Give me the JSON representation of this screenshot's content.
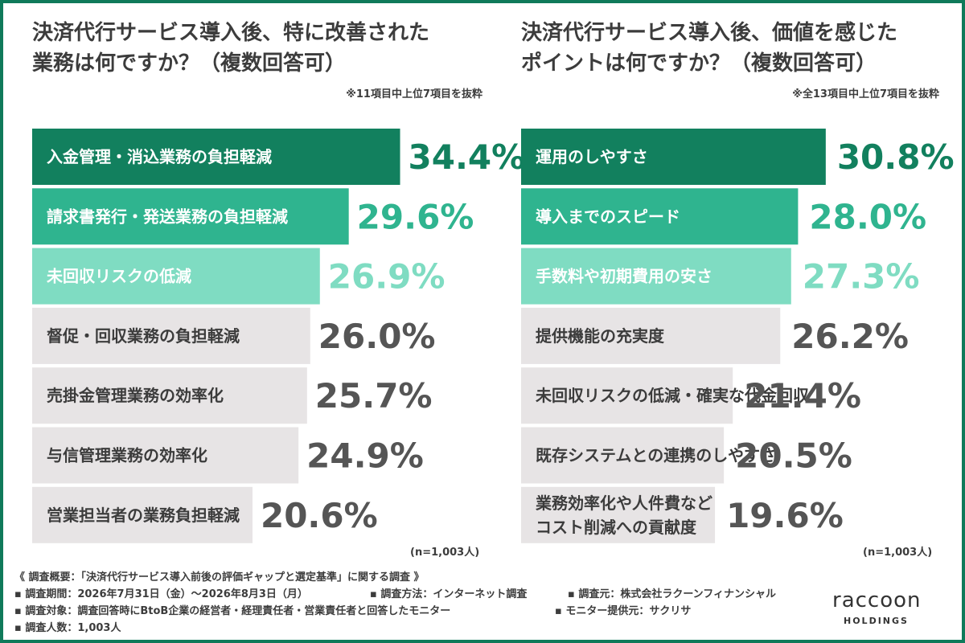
{
  "chart_data": [
    {
      "type": "bar",
      "orientation": "horizontal",
      "title": "決済代行サービス導入後、特に改善された業務は何ですか？（複数回答可）",
      "title_lines": [
        "決済代行サービス導入後、特に改善された",
        "業務は何ですか？（複数回答可）"
      ],
      "note": "※11項目中上位7項目を抜粋",
      "sample": "(n=1,003人)",
      "unit": "%",
      "categories": [
        "入金管理・消込業務の負担軽減",
        "請求書発行・発送業務の負担軽減",
        "未回収リスクの低減",
        "督促・回収業務の負担軽減",
        "売掛金管理業務の効率化",
        "与信管理業務の効率化",
        "営業担当者の業務負担軽減"
      ],
      "values": [
        34.4,
        29.6,
        26.9,
        26.0,
        25.7,
        24.9,
        20.6
      ],
      "value_labels": [
        "34.4%",
        "29.6%",
        "26.9%",
        "26.0%",
        "25.7%",
        "24.9%",
        "20.6%"
      ],
      "grid": false
    },
    {
      "type": "bar",
      "orientation": "horizontal",
      "title": "決済代行サービス導入後、価値を感じたポイントは何ですか？（複数回答可）",
      "title_lines": [
        "決済代行サービス導入後、価値を感じた",
        "ポイントは何ですか？（複数回答可）"
      ],
      "note": "※全13項目中上位7項目を抜粋",
      "sample": "(n=1,003人)",
      "unit": "%",
      "categories": [
        "運用のしやすさ",
        "導入までのスピード",
        "手数料や初期費用の安さ",
        "提供機能の充実度",
        "未回収リスクの低減・確実な代金回収",
        "既存システムとの連携のしやすさ",
        "業務効率化や人件費などコスト削減への貢献度"
      ],
      "category_lines": [
        [
          "運用のしやすさ"
        ],
        [
          "導入までのスピード"
        ],
        [
          "手数料や初期費用の安さ"
        ],
        [
          "提供機能の充実度"
        ],
        [
          "未回収リスクの低減・確実な代金回収"
        ],
        [
          "既存システムとの連携のしやすさ"
        ],
        [
          "業務効率化や人件費など",
          "コスト削減への貢献度"
        ]
      ],
      "values": [
        30.8,
        28.0,
        27.3,
        26.2,
        21.4,
        20.5,
        19.6
      ],
      "value_labels": [
        "30.8%",
        "28.0%",
        "27.3%",
        "26.2%",
        "21.4%",
        "20.5%",
        "19.6%"
      ],
      "grid": false
    }
  ],
  "colors": {
    "frame": "#0f7a5a",
    "rank1_bar": "#12805e",
    "rank1_text": "#12805e",
    "rank2_bar": "#2fb48f",
    "rank2_text": "#2fb48f",
    "rank3_bar": "#7fdcc2",
    "rank3_text": "#7fdcc2",
    "other_bar": "#e7e4e5",
    "other_text": "#555555",
    "dark_text": "#3c3c3c"
  },
  "footer": {
    "survey_title": "《 調査概要：「決済代行サービス導入前後の評価ギャップと選定基準」に関する調査 》",
    "period": "▪ 調査期間：2026年7月31日（金）〜2026年8月3日（月）",
    "method": "▪ 調査方法：インターネット調査",
    "source": "▪ 調査元：株式会社ラクーンフィナンシャル",
    "target": "▪ 調査対象：調査回答時にBtoB企業の経営者・経理責任者・営業責任者と回答したモニター",
    "provider": "▪ モニター提供元：サクリサ",
    "count": "▪ 調査人数：1,003人"
  },
  "logo": {
    "word": "raccoon",
    "sub": "HOLDINGS",
    "icon": "raccoon-logo-icon"
  }
}
